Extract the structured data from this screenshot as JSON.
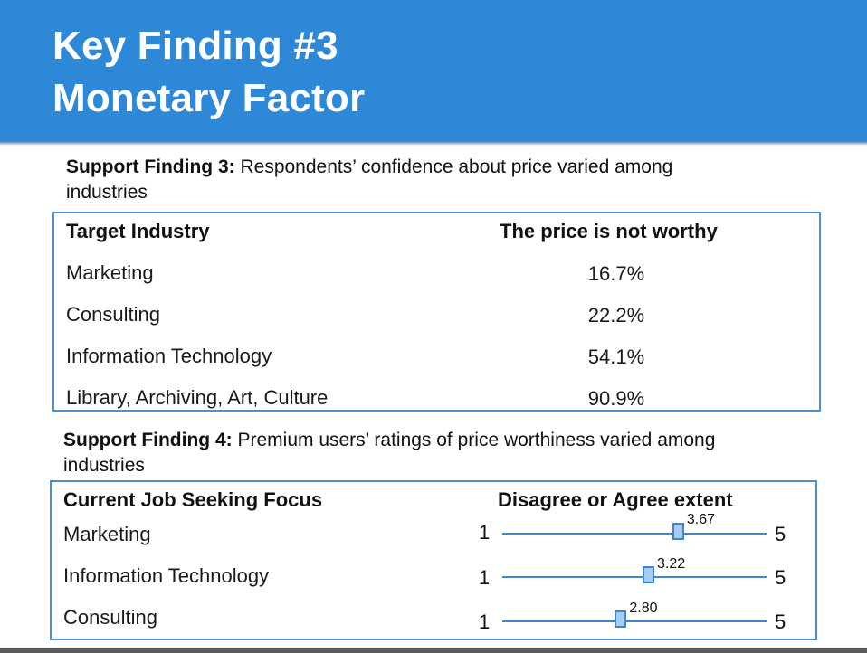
{
  "slide": {
    "title_line1": "Key Finding #3",
    "title_line2": "Monetary Factor"
  },
  "finding3": {
    "label": "Support Finding 3:",
    "text_line1": " Respondents’ confidence about price varied among",
    "text_line2": "industries",
    "table": {
      "col1_header": "Target Industry",
      "col2_header": "The price is not worthy",
      "rows": [
        {
          "industry": "Marketing",
          "value": "16.7%"
        },
        {
          "industry": "Consulting",
          "value": "22.2%"
        },
        {
          "industry": "Information Technology",
          "value": "54.1%"
        },
        {
          "industry": "Library, Archiving, Art, Culture",
          "value": "90.9%"
        }
      ]
    }
  },
  "finding4": {
    "label": "Support Finding 4:",
    "text_line1": " Premium users’ ratings of price worthiness varied among",
    "text_line2": "industries",
    "table": {
      "col1_header": "Current Job Seeking Focus",
      "col2_header": "Disagree or Agree extent",
      "scale_min": "1",
      "scale_max": "5",
      "rows": [
        {
          "industry": "Marketing",
          "rating": "3.67",
          "rating_value": 3.67
        },
        {
          "industry": "Information Technology",
          "rating": "3.22",
          "rating_value": 3.22
        },
        {
          "industry": "Consulting",
          "rating": "2.80",
          "rating_value": 2.8
        }
      ]
    }
  },
  "colors": {
    "header_bg": "#2d88d8",
    "accent_blue": "#3a86d4",
    "marker_fill": "#a9ccf2"
  }
}
